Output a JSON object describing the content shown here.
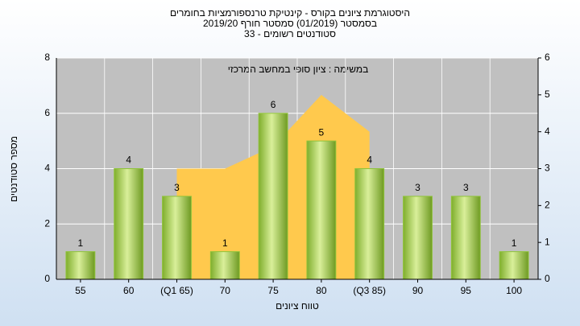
{
  "chart_data": {
    "type": "bar",
    "title": [
      "היסטוגרמת ציונים בקורס - קינטיקת טרנספורמציות בחומרים",
      "בסמסטר (01/2019) סמסטר חורף 2019/20",
      "סטודנטים רשומים - 33"
    ],
    "annotation": "במשימה : ציון סופי במחשב המרכזי",
    "xlabel": "טווח ציונים",
    "ylabel": "מספר סטודנטים",
    "categories": [
      "55",
      "60",
      "(Q1 65)",
      "70",
      "75",
      "80",
      "(Q3 85)",
      "90",
      "95",
      "100"
    ],
    "series": [
      {
        "type": "area",
        "axis": "y2",
        "color": "#ffc94d",
        "values": [
          null,
          null,
          3,
          3,
          3.6,
          5,
          4,
          null,
          null,
          null
        ]
      },
      {
        "type": "bar",
        "color": "#8fc33a",
        "values": [
          1,
          4,
          3,
          1,
          6,
          5,
          4,
          3,
          3,
          1
        ]
      }
    ],
    "ylim": [
      0,
      8
    ],
    "yticks": [
      0,
      2,
      4,
      6,
      8
    ],
    "y2lim": [
      0,
      6
    ],
    "y2ticks": [
      0,
      1,
      2,
      3,
      4,
      5,
      6
    ],
    "grid": true
  }
}
